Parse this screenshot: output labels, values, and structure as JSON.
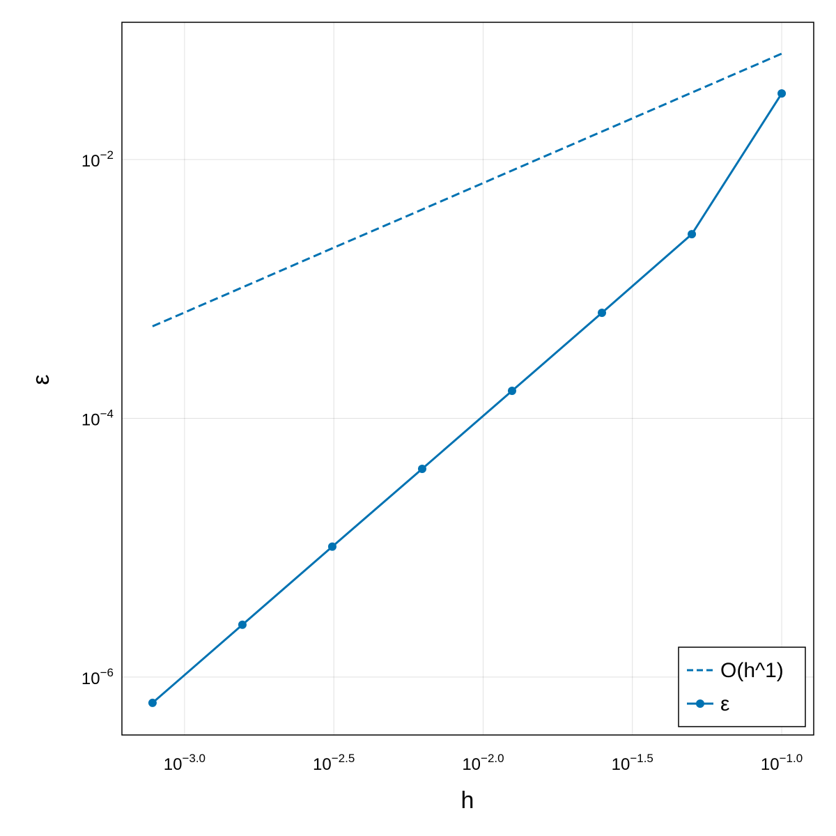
{
  "chart_data": {
    "type": "line",
    "xlabel": "h",
    "ylabel": "ε",
    "xscale": "log",
    "yscale": "log",
    "grid": true,
    "legend": "bottom right",
    "x": [
      0.00078125,
      0.0015625,
      0.003125,
      0.00625,
      0.0125,
      0.025,
      0.05,
      0.1
    ],
    "series": [
      {
        "name": "O(h^1)",
        "color": "#0072b2",
        "linestyle": "dash",
        "marker": false,
        "values": [
          0.000514,
          0.001028,
          0.00206,
          0.00411,
          0.00823,
          0.01645,
          0.0329,
          0.0658
        ]
      },
      {
        "name": "ε",
        "color": "#0072b2",
        "linestyle": "solid",
        "marker": true,
        "values": [
          6.32e-07,
          2.54e-06,
          1.02e-05,
          4.07e-05,
          0.000163,
          0.000654,
          0.00265,
          0.0324
        ]
      }
    ],
    "xlim": [
      0.000617,
      0.128
    ],
    "ylim": [
      3.57e-07,
      0.115
    ],
    "xticks": [
      {
        "value": 0.001,
        "label": "10",
        "superscript": "−3.0"
      },
      {
        "value": 0.0031623,
        "label": "10",
        "superscript": "−2.5"
      },
      {
        "value": 0.01,
        "label": "10",
        "superscript": "−2.0"
      },
      {
        "value": 0.031623,
        "label": "10",
        "superscript": "−1.5"
      },
      {
        "value": 0.1,
        "label": "10",
        "superscript": "−1.0"
      }
    ],
    "yticks": [
      {
        "value": 1e-06,
        "label": "10",
        "superscript": "−6"
      },
      {
        "value": 0.0001,
        "label": "10",
        "superscript": "−4"
      },
      {
        "value": 0.01,
        "label": "10",
        "superscript": "−2"
      }
    ]
  }
}
